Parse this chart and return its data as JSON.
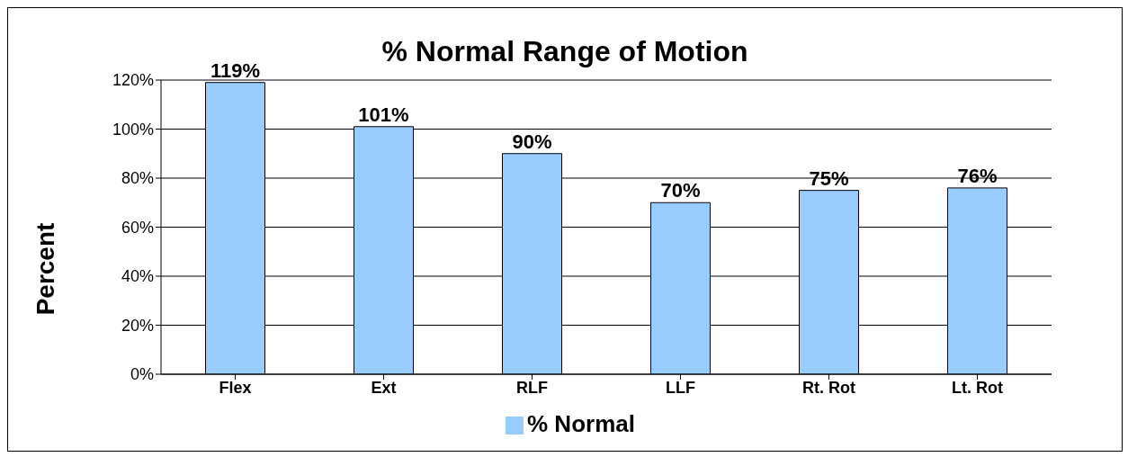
{
  "chart_data": {
    "type": "bar",
    "title": "% Normal Range of Motion",
    "ylabel": "Percent",
    "categories": [
      "Flex",
      "Ext",
      "RLF",
      "LLF",
      "Rt. Rot",
      "Lt. Rot"
    ],
    "series": [
      {
        "name": "% Normal",
        "color": "#99ccff",
        "values": [
          119,
          101,
          90,
          70,
          75,
          76
        ],
        "value_labels": [
          "119%",
          "101%",
          "90%",
          "70%",
          "75%",
          "76%"
        ]
      }
    ],
    "ylim": [
      0,
      120
    ],
    "yticks": [
      {
        "value": 0,
        "label": "0%"
      },
      {
        "value": 20,
        "label": "20%"
      },
      {
        "value": 40,
        "label": "40%"
      },
      {
        "value": 60,
        "label": "60%"
      },
      {
        "value": 80,
        "label": "80%"
      },
      {
        "value": 100,
        "label": "100%"
      },
      {
        "value": 120,
        "label": "120%"
      }
    ],
    "grid": "y",
    "legend": "bottom"
  }
}
